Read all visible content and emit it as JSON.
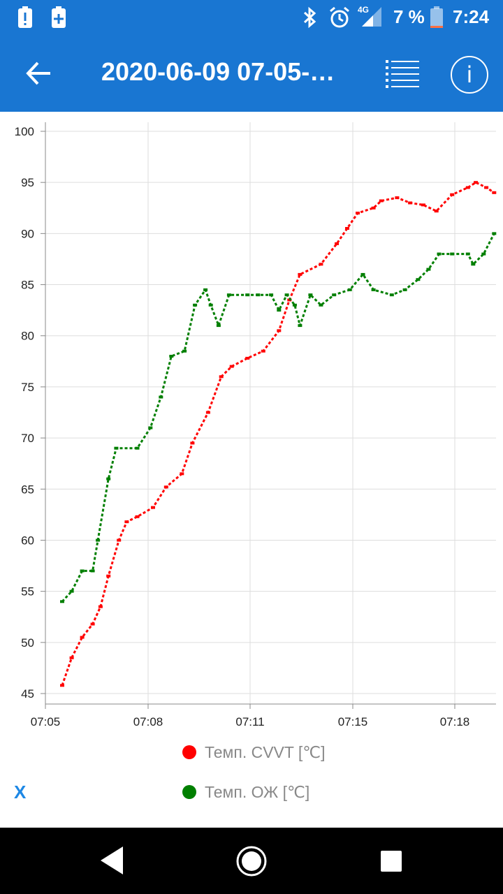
{
  "status_bar": {
    "battery_percent": "7 %",
    "time": "7:24",
    "network": "4G",
    "icons": [
      "alert-icon",
      "battery-plus-icon",
      "bluetooth-icon",
      "alarm-icon",
      "signal-icon",
      "battery-icon"
    ]
  },
  "app_bar": {
    "title": "2020-06-09 07-05-…",
    "icons": [
      "back-arrow-icon",
      "list-icon",
      "info-icon"
    ]
  },
  "legend": {
    "series1": "Темп. CVVT [℃]",
    "series2": "Темп. ОЖ [℃]"
  },
  "x_button": "X",
  "chart_data": {
    "type": "line",
    "title": "",
    "xlabel": "",
    "ylabel": "",
    "ylim": [
      45,
      100
    ],
    "y_ticks": [
      "45",
      "50",
      "55",
      "60",
      "65",
      "70",
      "75",
      "80",
      "85",
      "90",
      "95",
      "100"
    ],
    "x_ticks": [
      "07:05",
      "07:08",
      "07:11",
      "07:15",
      "07:18"
    ],
    "grid": true,
    "legend_placement": "bottom",
    "series": [
      {
        "name": "Темп. CVVT [℃]",
        "color": "#ff0000",
        "points": [
          [
            "07:05:32",
            45.8
          ],
          [
            "07:05:50",
            48.5
          ],
          [
            "07:06:10",
            50.5
          ],
          [
            "07:06:30",
            51.8
          ],
          [
            "07:06:45",
            53.5
          ],
          [
            "07:07:00",
            56.5
          ],
          [
            "07:07:20",
            60.0
          ],
          [
            "07:07:35",
            61.8
          ],
          [
            "07:07:55",
            62.3
          ],
          [
            "07:08:25",
            63.2
          ],
          [
            "07:08:50",
            65.2
          ],
          [
            "07:09:20",
            66.5
          ],
          [
            "07:09:40",
            69.5
          ],
          [
            "07:10:10",
            72.5
          ],
          [
            "07:10:35",
            76.0
          ],
          [
            "07:10:55",
            77.0
          ],
          [
            "07:11:25",
            77.8
          ],
          [
            "07:11:55",
            78.5
          ],
          [
            "07:12:25",
            80.5
          ],
          [
            "07:12:45",
            83.5
          ],
          [
            "07:13:05",
            86.0
          ],
          [
            "07:13:45",
            87.0
          ],
          [
            "07:14:15",
            89.0
          ],
          [
            "07:14:35",
            90.5
          ],
          [
            "07:14:55",
            92.0
          ],
          [
            "07:15:25",
            92.5
          ],
          [
            "07:15:40",
            93.2
          ],
          [
            "07:16:10",
            93.5
          ],
          [
            "07:16:35",
            93.0
          ],
          [
            "07:17:00",
            92.8
          ],
          [
            "07:17:25",
            92.2
          ],
          [
            "07:17:55",
            93.8
          ],
          [
            "07:18:25",
            94.5
          ],
          [
            "07:18:40",
            95.0
          ],
          [
            "07:19:00",
            94.5
          ],
          [
            "07:19:15",
            94.0
          ]
        ]
      },
      {
        "name": "Темп. ОЖ [℃]",
        "color": "#007f00",
        "points": [
          [
            "07:05:32",
            54.0
          ],
          [
            "07:05:50",
            55.0
          ],
          [
            "07:06:10",
            57.0
          ],
          [
            "07:06:30",
            57.0
          ],
          [
            "07:06:40",
            60.0
          ],
          [
            "07:07:00",
            66.0
          ],
          [
            "07:07:15",
            69.0
          ],
          [
            "07:07:55",
            69.0
          ],
          [
            "07:08:20",
            71.0
          ],
          [
            "07:08:40",
            74.0
          ],
          [
            "07:09:00",
            78.0
          ],
          [
            "07:09:25",
            78.5
          ],
          [
            "07:09:45",
            83.0
          ],
          [
            "07:10:05",
            84.5
          ],
          [
            "07:10:15",
            83.0
          ],
          [
            "07:10:30",
            81.0
          ],
          [
            "07:10:50",
            84.0
          ],
          [
            "07:11:25",
            84.0
          ],
          [
            "07:11:45",
            84.0
          ],
          [
            "07:12:10",
            84.0
          ],
          [
            "07:12:25",
            82.5
          ],
          [
            "07:12:40",
            84.0
          ],
          [
            "07:12:55",
            83.0
          ],
          [
            "07:13:05",
            81.0
          ],
          [
            "07:13:25",
            84.0
          ],
          [
            "07:13:45",
            83.0
          ],
          [
            "07:14:10",
            84.0
          ],
          [
            "07:14:40",
            84.5
          ],
          [
            "07:15:05",
            86.0
          ],
          [
            "07:15:25",
            84.5
          ],
          [
            "07:16:00",
            84.0
          ],
          [
            "07:16:25",
            84.5
          ],
          [
            "07:16:50",
            85.5
          ],
          [
            "07:17:10",
            86.5
          ],
          [
            "07:17:30",
            88.0
          ],
          [
            "07:17:55",
            88.0
          ],
          [
            "07:18:25",
            88.0
          ],
          [
            "07:18:35",
            87.0
          ],
          [
            "07:18:55",
            88.0
          ],
          [
            "07:19:15",
            90.0
          ]
        ]
      }
    ]
  }
}
